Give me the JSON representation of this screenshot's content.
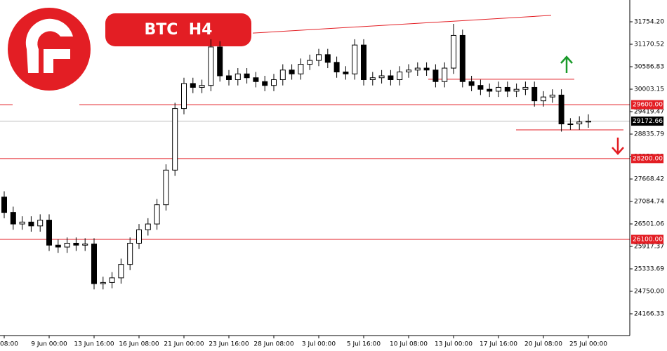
{
  "chart_data": {
    "type": "candlestick",
    "title": "BTC  H4",
    "categories": [
      "08:00",
      null,
      null,
      null,
      null,
      "9 Jun 00:00",
      null,
      null,
      null,
      null,
      "13 Jun 16:00",
      null,
      null,
      null,
      null,
      "16 Jun 08:00",
      null,
      null,
      null,
      null,
      "21 Jun 00:00",
      null,
      null,
      null,
      null,
      "23 Jun 16:00",
      null,
      null,
      null,
      null,
      "28 Jun 08:00",
      null,
      null,
      null,
      null,
      "3 Jul 00:00",
      null,
      null,
      null,
      null,
      "5 Jul 16:00",
      null,
      null,
      null,
      null,
      "10 Jul 08:00",
      null,
      null,
      null,
      null,
      "13 Jul 00:00",
      null,
      null,
      null,
      null,
      "17 Jul 16:00",
      null,
      null,
      null,
      null,
      "20 Jul 08:00",
      null,
      null,
      null,
      null,
      "25 Jul 00:00"
    ],
    "open": [
      27200,
      26800,
      26500,
      26550,
      26450,
      26600,
      25950,
      25900,
      26000,
      25950,
      25980,
      24950,
      24980,
      25100,
      25450,
      26000,
      26350,
      26500,
      27000,
      27900,
      29500,
      30150,
      30050,
      30100,
      31100,
      30350,
      30250,
      30400,
      30300,
      30200,
      30100,
      30250,
      30500,
      30400,
      30650,
      30750,
      30900,
      30700,
      30450,
      30400,
      31150,
      30250,
      30300,
      30350,
      30250,
      30450,
      30500,
      30550,
      30500,
      30200,
      30550,
      31400,
      30200,
      30100,
      30000,
      29950,
      30050,
      29950,
      30000,
      30050,
      29700,
      29800,
      29850,
      29100,
      29100,
      29150
    ],
    "high": [
      27350,
      26950,
      26700,
      26700,
      26750,
      26750,
      26100,
      26150,
      26150,
      26130,
      26130,
      25130,
      25250,
      25600,
      26150,
      26500,
      26650,
      27150,
      28050,
      29650,
      30300,
      30300,
      30250,
      31300,
      31250,
      30500,
      30550,
      30550,
      30450,
      30350,
      30400,
      30650,
      30650,
      30800,
      30900,
      31050,
      31050,
      30850,
      30600,
      31300,
      31300,
      30450,
      30500,
      30500,
      30600,
      30650,
      30700,
      30700,
      30650,
      30700,
      31700,
      31550,
      30350,
      30250,
      30150,
      30200,
      30200,
      30150,
      30200,
      30200,
      29950,
      30000,
      30000,
      29250,
      29300,
      29350
    ],
    "low": [
      26650,
      26350,
      26350,
      26300,
      26300,
      25800,
      25750,
      25750,
      25800,
      25800,
      24800,
      24800,
      24830,
      24950,
      25300,
      25850,
      26200,
      26350,
      26850,
      27750,
      29350,
      29900,
      29900,
      29950,
      30200,
      30100,
      30100,
      30150,
      30050,
      29950,
      29950,
      30100,
      30250,
      30250,
      30500,
      30600,
      30550,
      30300,
      30250,
      30250,
      30100,
      30100,
      30150,
      30100,
      30100,
      30300,
      30350,
      30350,
      30050,
      30050,
      30400,
      30050,
      29950,
      29850,
      29800,
      29800,
      29800,
      29800,
      29850,
      29550,
      29550,
      29650,
      28900,
      28950,
      28950,
      29000
    ],
    "close": [
      26800,
      26500,
      26550,
      26450,
      26600,
      25950,
      25900,
      26000,
      25950,
      25980,
      24950,
      24980,
      25100,
      25450,
      26000,
      26350,
      26500,
      27000,
      27900,
      29500,
      30150,
      30050,
      30100,
      31100,
      30350,
      30250,
      30400,
      30300,
      30200,
      30100,
      30250,
      30500,
      30400,
      30650,
      30750,
      30900,
      30700,
      30450,
      30400,
      31150,
      30250,
      30300,
      30350,
      30250,
      30450,
      30500,
      30550,
      30500,
      30200,
      30550,
      31400,
      30200,
      30100,
      30000,
      29950,
      30050,
      29950,
      30000,
      30050,
      29700,
      29800,
      29850,
      29100,
      29100,
      29150,
      29172.66
    ],
    "ylim": [
      23601,
      32320
    ],
    "yticks": [
      {
        "value": 31754.2,
        "label": "31754.20"
      },
      {
        "value": 31170.52,
        "label": "31170.52"
      },
      {
        "value": 30586.83,
        "label": "30586.83"
      },
      {
        "value": 30003.15,
        "label": "30003.15"
      },
      {
        "value": 29419.47,
        "label": "29419.47"
      },
      {
        "value": 28835.79,
        "label": "28835.79"
      },
      {
        "value": 28252.11,
        "label": "28252.11"
      },
      {
        "value": 27668.42,
        "label": "27668.42"
      },
      {
        "value": 27084.74,
        "label": "27084.74"
      },
      {
        "value": 26501.06,
        "label": "26501.06"
      },
      {
        "value": 25917.37,
        "label": "25917.37"
      },
      {
        "value": 25333.69,
        "label": "25333.69"
      },
      {
        "value": 24750,
        "label": "24750.00"
      },
      {
        "value": 24166.33,
        "label": "24166.33"
      }
    ],
    "levels": [
      {
        "value": 29600,
        "label": "29600.00"
      },
      {
        "value": 28200,
        "label": "28200.00"
      },
      {
        "value": 26100,
        "label": "26100.00"
      }
    ],
    "short_levels": [
      30260,
      28945
    ],
    "trendline": [
      31460,
      31920
    ],
    "current_price": {
      "value": 29172.66,
      "label": "29172.66"
    },
    "level_color": "#e31e24",
    "up_color": "#ffffff",
    "down_color": "#000000"
  }
}
